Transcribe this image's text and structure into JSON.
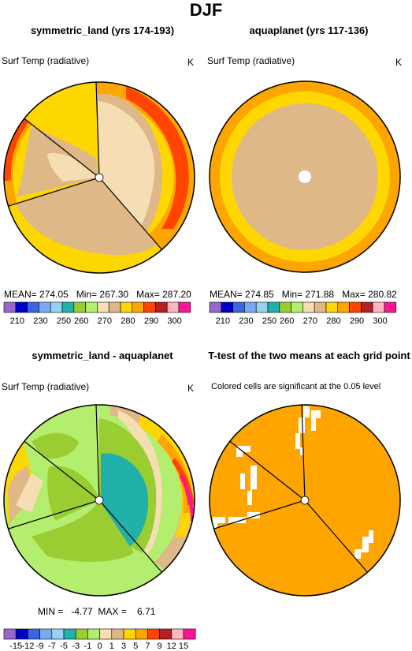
{
  "title": "DJF",
  "colors": {
    "palette": [
      "#9966cc",
      "#0000c8",
      "#3c64dc",
      "#78aaf0",
      "#96d2f0",
      "#20b2aa",
      "#9acd32",
      "#b4ee6e",
      "#f5deb3",
      "#deb887",
      "#ffd700",
      "#ffa500",
      "#ff4500",
      "#b22222",
      "#ffb6c1",
      "#ff1493"
    ]
  },
  "panels": {
    "sym": {
      "title": "symmetric_land (yrs 174-193)",
      "label": "Surf Temp (radiative)",
      "unit": "K",
      "stats": "MEAN= 274.05   Min= 267.30   Max= 287.20"
    },
    "aqua": {
      "title": "aquaplanet (yrs 117-136)",
      "label": "Surf Temp (radiative)",
      "unit": "K",
      "stats": "MEAN= 274.85   Min= 271.88   Max= 280.82"
    },
    "diff": {
      "title": "symmetric_land - aquaplanet",
      "label": "Surf Temp (radiative)",
      "unit": "K",
      "stats": "MIN =   -4.77  MAX =    6.71"
    },
    "ttest": {
      "title": "T-test of the two means at each grid point",
      "label": "Colored cells are significant at the 0.05 level"
    }
  },
  "colorbars": {
    "temp_ticks": [
      "210",
      "230",
      "250",
      "260",
      "270",
      "280",
      "290",
      "300"
    ],
    "diff_ticks": [
      "-15",
      "-12",
      "-9",
      "-7",
      "-5",
      "-3",
      "-1",
      "0",
      "1",
      "3",
      "5",
      "7",
      "9",
      "12",
      "15"
    ]
  }
}
